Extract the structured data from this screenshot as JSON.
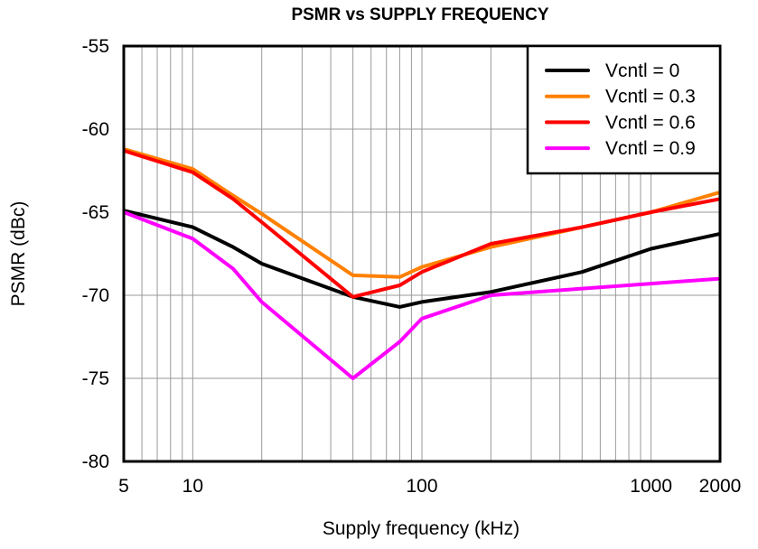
{
  "chart_data": {
    "type": "line",
    "title": "PSMR vs SUPPLY FREQUENCY",
    "xlabel": "Supply frequency (kHz)",
    "ylabel": "PSMR (dBc)",
    "x_scale": "log",
    "xlim": [
      5,
      2000
    ],
    "ylim": [
      -80,
      -55
    ],
    "x_ticks": [
      5,
      10,
      100,
      1000,
      2000
    ],
    "x_tick_labels": [
      "5",
      "10",
      "100",
      "1000",
      "2000"
    ],
    "y_ticks": [
      -55,
      -60,
      -65,
      -70,
      -75,
      -80
    ],
    "y_tick_labels": [
      "-55",
      "-60",
      "-65",
      "-70",
      "-75",
      "-80"
    ],
    "grid": true,
    "legend_position": "top-right",
    "x": [
      5,
      10,
      15,
      20,
      50,
      80,
      100,
      200,
      500,
      1000,
      2000
    ],
    "series": [
      {
        "name": "Vcntl = 0",
        "color": "#000000",
        "values": [
          -64.9,
          -65.9,
          -67.1,
          -68.1,
          -70.1,
          -70.7,
          -70.4,
          -69.8,
          -68.6,
          -67.2,
          -66.3
        ]
      },
      {
        "name": "Vcntl = 0.3",
        "color": "#FF8000",
        "values": [
          -61.2,
          -62.4,
          -64.0,
          -65.1,
          -68.8,
          -68.9,
          -68.3,
          -67.1,
          -65.9,
          -65.0,
          -63.8
        ]
      },
      {
        "name": "Vcntl = 0.6",
        "color": "#FF0000",
        "values": [
          -61.3,
          -62.6,
          -64.2,
          -65.6,
          -70.1,
          -69.4,
          -68.6,
          -66.9,
          -65.9,
          -65.0,
          -64.2
        ]
      },
      {
        "name": "Vcntl = 0.9",
        "color": "#FF00FF",
        "values": [
          -65.0,
          -66.6,
          -68.4,
          -70.4,
          -75.0,
          -72.8,
          -71.4,
          -70.0,
          -69.6,
          -69.3,
          -69.0
        ]
      }
    ]
  }
}
